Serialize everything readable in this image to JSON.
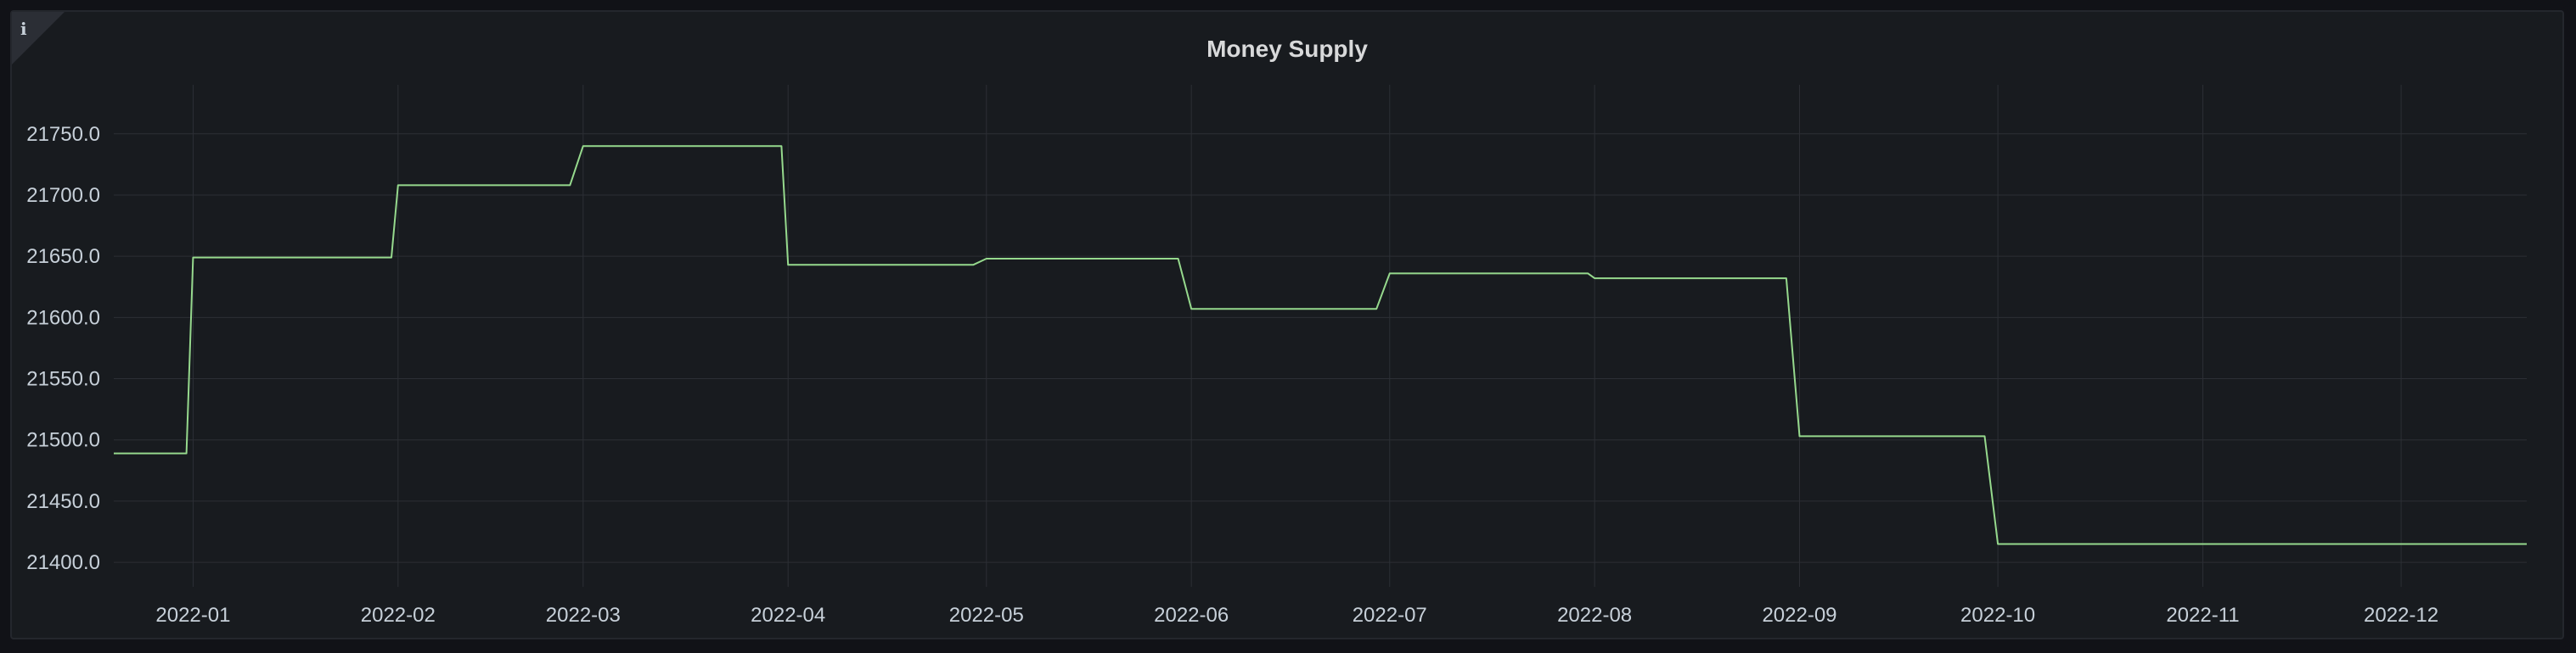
{
  "panel": {
    "title": "Money Supply",
    "info_icon": "info-icon"
  },
  "colors": {
    "background": "#111217",
    "panel": "#181b1f",
    "grid": "#2c2f35",
    "series": "#96d98d",
    "text": "#c7d0d9"
  },
  "chart_data": {
    "type": "line",
    "title": "Money Supply",
    "xlabel": "",
    "ylabel": "",
    "grid": true,
    "legend": "none",
    "line_style": "step",
    "xlim": [
      "2021-12-20",
      "2022-12-20"
    ],
    "ylim": [
      21380,
      21790
    ],
    "y_ticks": [
      "21400.0",
      "21450.0",
      "21500.0",
      "21550.0",
      "21600.0",
      "21650.0",
      "21700.0",
      "21750.0"
    ],
    "x_ticks": [
      "2022-01",
      "2022-02",
      "2022-03",
      "2022-04",
      "2022-05",
      "2022-06",
      "2022-07",
      "2022-08",
      "2022-09",
      "2022-10",
      "2022-11",
      "2022-12"
    ],
    "series": [
      {
        "name": "",
        "points": [
          {
            "x": "2021-12-20",
            "y": 21489
          },
          {
            "x": "2021-12-31",
            "y": 21489
          },
          {
            "x": "2022-01-01",
            "y": 21649
          },
          {
            "x": "2022-01-31",
            "y": 21649
          },
          {
            "x": "2022-02-01",
            "y": 21708
          },
          {
            "x": "2022-02-27",
            "y": 21708
          },
          {
            "x": "2022-03-01",
            "y": 21740
          },
          {
            "x": "2022-03-31",
            "y": 21740
          },
          {
            "x": "2022-04-01",
            "y": 21643
          },
          {
            "x": "2022-04-29",
            "y": 21643
          },
          {
            "x": "2022-05-01",
            "y": 21648
          },
          {
            "x": "2022-05-30",
            "y": 21648
          },
          {
            "x": "2022-06-01",
            "y": 21607
          },
          {
            "x": "2022-06-29",
            "y": 21607
          },
          {
            "x": "2022-07-01",
            "y": 21636
          },
          {
            "x": "2022-07-31",
            "y": 21636
          },
          {
            "x": "2022-08-01",
            "y": 21632
          },
          {
            "x": "2022-08-30",
            "y": 21632
          },
          {
            "x": "2022-09-01",
            "y": 21503
          },
          {
            "x": "2022-09-29",
            "y": 21503
          },
          {
            "x": "2022-10-01",
            "y": 21415
          },
          {
            "x": "2022-12-20",
            "y": 21415
          }
        ]
      }
    ]
  }
}
